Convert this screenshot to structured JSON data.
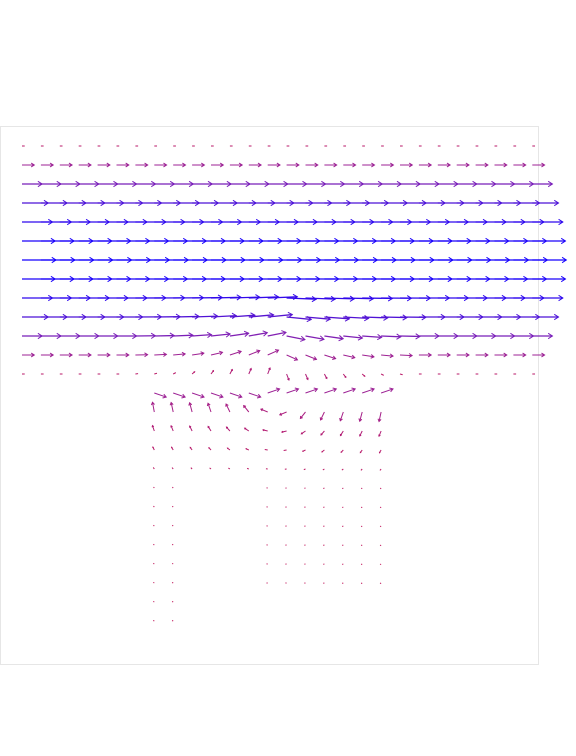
{
  "chart_data": {
    "type": "vector-field",
    "title": "",
    "xlabel": "",
    "ylabel": "",
    "grid": false,
    "legend": "none",
    "colormap": {
      "low": "#c2185b",
      "mid": "#8e24aa",
      "high": "#1400ff"
    },
    "grid_x": {
      "start": 0,
      "step": 1,
      "count": 28
    },
    "grid_y": {
      "start": 0,
      "step": 1,
      "count": 26
    },
    "domain": {
      "x": [
        0,
        27
      ],
      "y": [
        0,
        25
      ]
    },
    "cavity": {
      "upper_channel_x": [
        0,
        27
      ],
      "upper_channel_y": [
        0,
        12
      ],
      "neck_x": [
        7,
        19
      ],
      "neck_y": [
        12,
        17
      ],
      "lower_left_x": [
        7,
        10
      ],
      "lower_right_x": [
        13,
        19
      ],
      "lower_y": [
        17,
        25
      ]
    },
    "flow": {
      "inlet_max_speed": 1.0,
      "recirculation_strength": 0.55,
      "vortex_center": [
        13.5,
        12.8
      ]
    }
  }
}
